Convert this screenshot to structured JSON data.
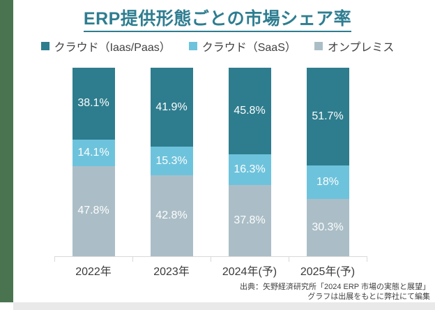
{
  "title": "ERP提供形態ごとの市場シェア率",
  "chart_data": {
    "type": "bar",
    "stacked": true,
    "unit": "%",
    "title": "ERP提供形態ごとの市場シェア率",
    "categories": [
      "2022年",
      "2023年",
      "2024年(予)",
      "2025年(予)"
    ],
    "series": [
      {
        "name": "クラウド（Iaas/Paas）",
        "color": "#2e7d8e",
        "values": [
          38.1,
          41.9,
          45.8,
          51.7
        ],
        "labels": [
          "38.1%",
          "41.9%",
          "45.8%",
          "51.7%"
        ]
      },
      {
        "name": "クラウド（SaaS）",
        "color": "#6ec3dc",
        "values": [
          14.1,
          15.3,
          16.3,
          18
        ],
        "labels": [
          "14.1%",
          "15.3%",
          "16.3%",
          "18%"
        ]
      },
      {
        "name": "オンプレミス",
        "color": "#abbec7",
        "values": [
          47.8,
          42.8,
          37.8,
          30.3
        ],
        "labels": [
          "47.8%",
          "42.8%",
          "37.8%",
          "30.3%"
        ]
      }
    ],
    "ylim": [
      0,
      100
    ],
    "legend_position": "top",
    "value_labels": "inside",
    "grid": false
  },
  "source": {
    "line1": "出典：矢野経済研究所「2024 ERP 市場の実態と展望」",
    "line2": "グラフは出展をもとに弊社にて編集"
  },
  "colors": {
    "title_text": "#2e7d90",
    "accent_stripe": "#4a7450",
    "bottom_band": "#e9e9e9",
    "axis": "#d9d9d9",
    "value_text": "#fdfdfd",
    "label_text": "#3a3a3a"
  }
}
